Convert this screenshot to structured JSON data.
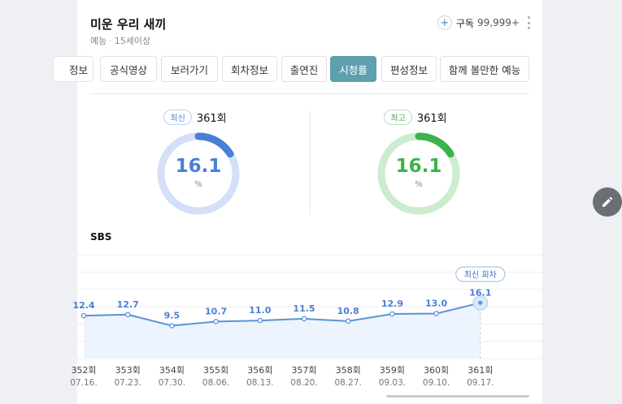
{
  "header": {
    "title": "미운 우리 새끼",
    "genre": "예능",
    "age_rating": "15세이상",
    "subscribe_label": "구독",
    "subscribe_count": "99,999+"
  },
  "tabs": [
    {
      "label": "정보",
      "active": false
    },
    {
      "label": "공식영상",
      "active": false
    },
    {
      "label": "보러가기",
      "active": false
    },
    {
      "label": "회차정보",
      "active": false
    },
    {
      "label": "출연진",
      "active": false
    },
    {
      "label": "시청률",
      "active": true
    },
    {
      "label": "편성정보",
      "active": false
    },
    {
      "label": "함께 볼만한 예능",
      "active": false
    }
  ],
  "ratings": {
    "latest": {
      "badge": "최신",
      "episode": "361회",
      "value": "16.1",
      "unit": "%",
      "fraction": 0.161,
      "color": "#4a7fd6",
      "track": "#d3e0f7"
    },
    "best": {
      "badge": "최고",
      "episode": "361회",
      "value": "16.1",
      "unit": "%",
      "fraction": 0.161,
      "color": "#3bb34a",
      "track": "#cdeccf"
    }
  },
  "chart_title": "SBS",
  "chart_data": {
    "type": "line",
    "series": [
      {
        "values": [
          12.4,
          12.7,
          9.5,
          10.7,
          11.0,
          11.5,
          10.8,
          12.9,
          13.0,
          16.1
        ]
      }
    ],
    "categories": [
      "352회",
      "353회",
      "354회",
      "355회",
      "356회",
      "357회",
      "358회",
      "359회",
      "360회",
      "361회"
    ],
    "dates": [
      "07.16.",
      "07.23.",
      "07.30.",
      "08.06.",
      "08.13.",
      "08.20.",
      "08.27.",
      "09.03.",
      "09.10.",
      "09.17."
    ],
    "labels": [
      "12.4",
      "12.7",
      "9.5",
      "10.7",
      "11.0",
      "11.5",
      "10.8",
      "12.9",
      "13.0",
      "16.1"
    ],
    "highlight_label": "최신 회차",
    "ylim": [
      0,
      30
    ],
    "line_color": "#5b93d8",
    "fill_color": "#eef4fd"
  }
}
